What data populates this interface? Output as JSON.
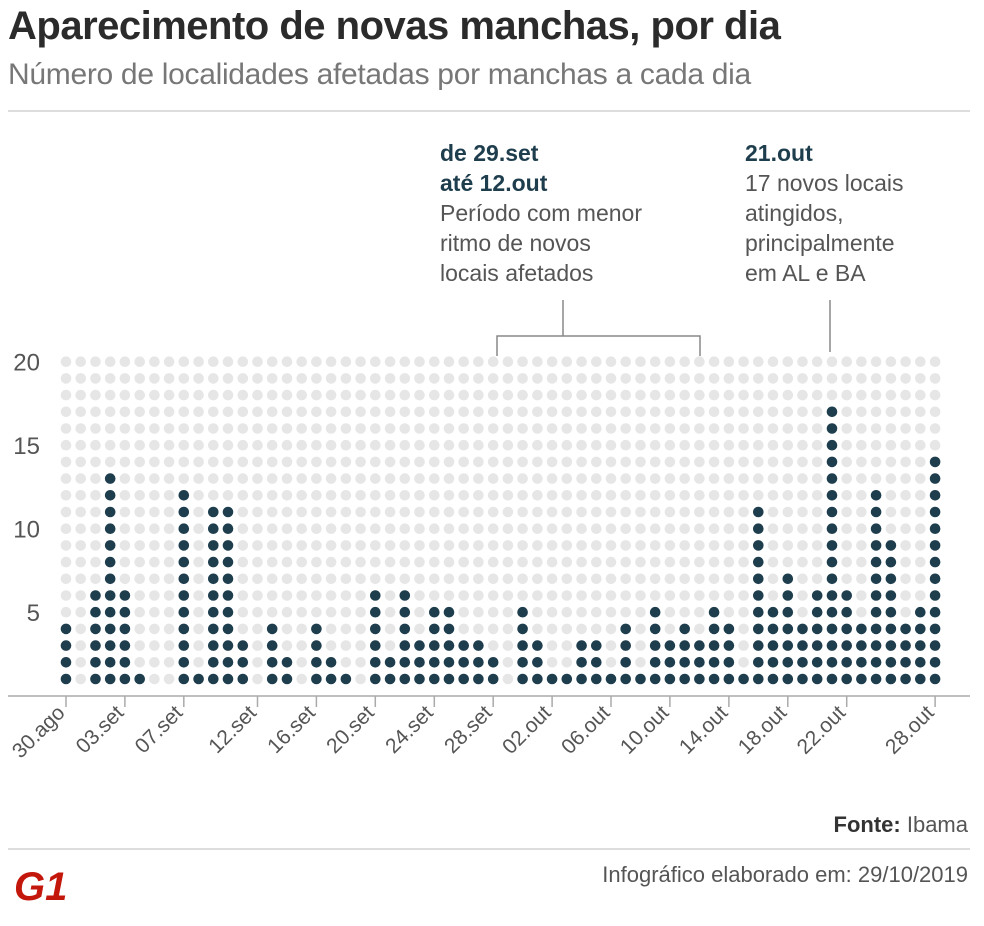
{
  "header": {
    "title": "Aparecimento de novas manchas, por dia",
    "subtitle": "Número de localidades afetadas por manchas a cada dia"
  },
  "annotations": [
    {
      "bold_line1": "de 29.set",
      "bold_line2": "até 12.out",
      "text": [
        "Período com menor",
        "ritmo de novos",
        "locais afetados"
      ]
    },
    {
      "bold_line1": "21.out",
      "text": [
        "17 novos locais",
        "atingidos,",
        "principalmente",
        "em AL e BA"
      ]
    }
  ],
  "colors": {
    "dot_on": "#1e3d4d",
    "dot_off": "#e6e6e6",
    "brand": "#c4170c",
    "axis": "#aaaaaa"
  },
  "chart_data": {
    "type": "dot-column",
    "title": "Aparecimento de novas manchas, por dia",
    "subtitle": "Número de localidades afetadas por manchas a cada dia",
    "xlabel": "",
    "ylabel": "",
    "ylim": [
      0,
      20
    ],
    "yticks": [
      5,
      10,
      15,
      20
    ],
    "dates": [
      "30.ago",
      "31.ago",
      "01.set",
      "02.set",
      "03.set",
      "04.set",
      "05.set",
      "06.set",
      "07.set",
      "08.set",
      "09.set",
      "10.set",
      "11.set",
      "12.set",
      "13.set",
      "14.set",
      "15.set",
      "16.set",
      "17.set",
      "18.set",
      "19.set",
      "20.set",
      "21.set",
      "22.set",
      "23.set",
      "24.set",
      "25.set",
      "26.set",
      "27.set",
      "28.set",
      "29.set",
      "30.set",
      "01.out",
      "02.out",
      "03.out",
      "04.out",
      "05.out",
      "06.out",
      "07.out",
      "08.out",
      "09.out",
      "10.out",
      "11.out",
      "12.out",
      "13.out",
      "14.out",
      "15.out",
      "16.out",
      "17.out",
      "18.out",
      "19.out",
      "20.out",
      "21.out",
      "22.out",
      "23.out",
      "24.out",
      "25.out",
      "26.out",
      "27.out",
      "28.out"
    ],
    "values": [
      4,
      0,
      6,
      13,
      6,
      1,
      0,
      0,
      12,
      1,
      11,
      11,
      3,
      0,
      4,
      2,
      0,
      4,
      2,
      1,
      0,
      6,
      2,
      6,
      3,
      5,
      5,
      3,
      3,
      2,
      0,
      5,
      3,
      1,
      1,
      3,
      3,
      1,
      4,
      1,
      5,
      3,
      4,
      3,
      5,
      4,
      1,
      11,
      5,
      7,
      4,
      6,
      17,
      6,
      4,
      12,
      9,
      4,
      5,
      14
    ],
    "xtick_labels": [
      "30.ago",
      "03.set",
      "07.set",
      "12.set",
      "16.set",
      "20.set",
      "24.set",
      "28.set",
      "02.out",
      "06.out",
      "10.out",
      "14.out",
      "18.out",
      "22.out",
      "28.out"
    ],
    "xtick_indices": [
      0,
      4,
      8,
      13,
      17,
      21,
      25,
      29,
      33,
      37,
      41,
      45,
      49,
      53,
      59
    ],
    "source": "Ibama"
  },
  "footer": {
    "source_label": "Fonte:",
    "source_value": "Ibama",
    "date_label": "Infográfico elaborado em:",
    "date_value": "29/10/2019",
    "brand": "G1"
  }
}
